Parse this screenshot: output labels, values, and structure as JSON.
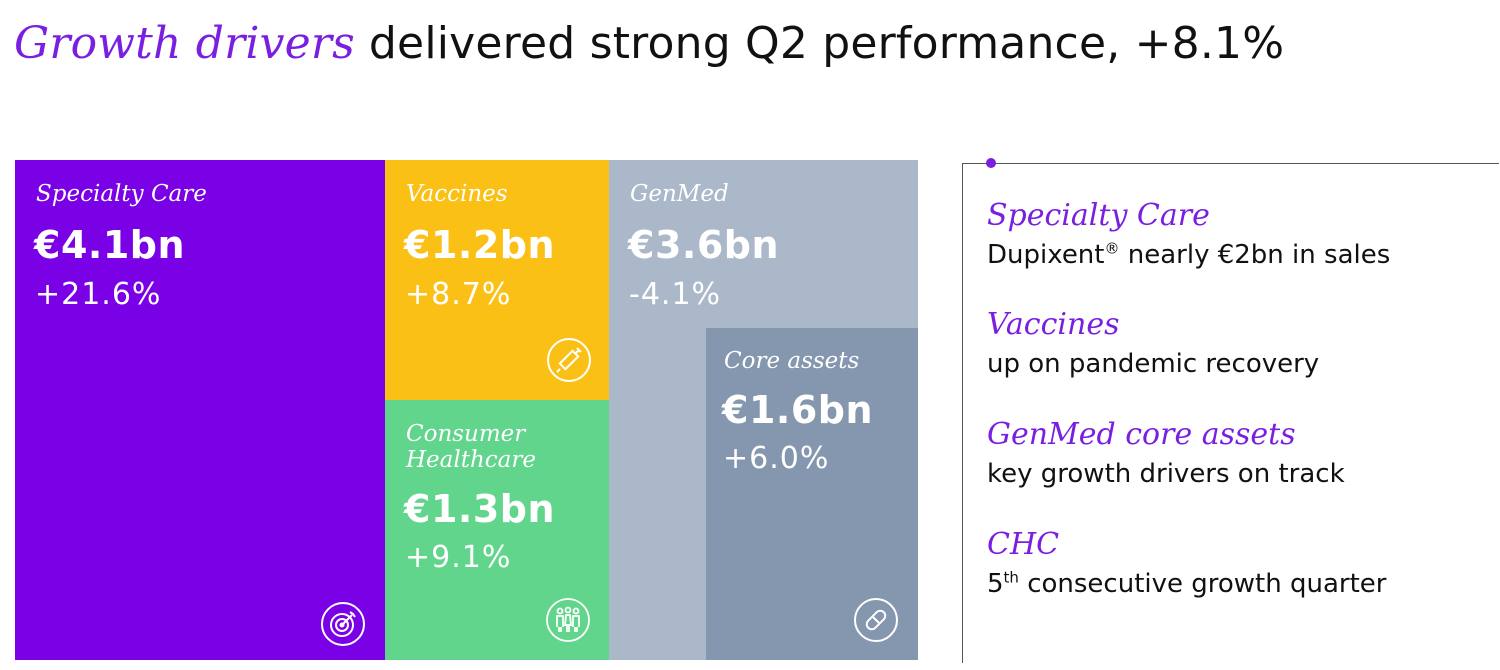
{
  "title": {
    "emphasis": "Growth drivers",
    "rest": "delivered strong Q2 performance, +8.1%"
  },
  "tiles": {
    "specialty_care": {
      "name": "Specialty Care",
      "amount": "€4.1bn",
      "growth": "+21.6%",
      "color": "#7a00e6",
      "icon": "target-icon"
    },
    "vaccines": {
      "name": "Vaccines",
      "amount": "€1.2bn",
      "growth": "+8.7%",
      "color": "#fbc015",
      "icon": "syringe-icon"
    },
    "consumer_healthcare": {
      "name": "Consumer Healthcare",
      "amount": "€1.3bn",
      "growth": "+9.1%",
      "color": "#62d58c",
      "icon": "people-icon"
    },
    "genmed": {
      "name": "GenMed",
      "amount": "€3.6bn",
      "growth": "-4.1%",
      "color": "#abb8c9"
    },
    "core_assets": {
      "name": "Core assets",
      "amount": "€1.6bn",
      "growth": "+6.0%",
      "color": "#8497ae",
      "icon": "pill-icon"
    }
  },
  "highlights": [
    {
      "heading": "Specialty Care",
      "text_before": "Dupixent",
      "superscript": "®",
      "text_after": " nearly €2bn in sales"
    },
    {
      "heading": "Vaccines",
      "text_before": "up on pandemic recovery",
      "superscript": "",
      "text_after": ""
    },
    {
      "heading": "GenMed core assets",
      "text_before": "key growth drivers on track",
      "superscript": "",
      "text_after": ""
    },
    {
      "heading": "CHC",
      "text_before": "5",
      "superscript": "th",
      "text_after": " consecutive growth quarter"
    }
  ],
  "accent_color": "#7a1fe0"
}
